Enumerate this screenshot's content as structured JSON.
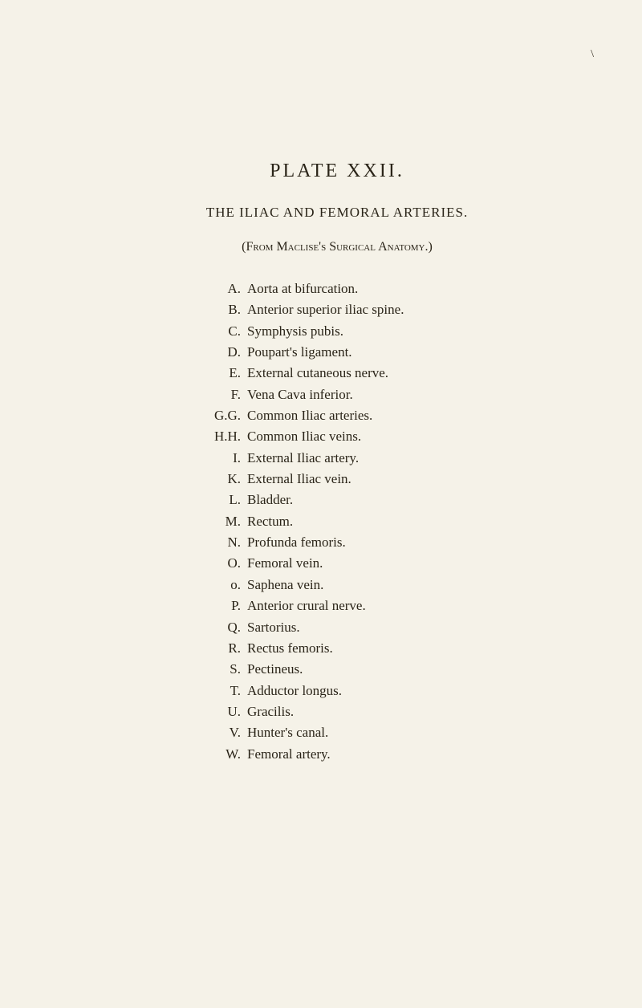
{
  "colors": {
    "background": "#f5f2e8",
    "text": "#2a2418"
  },
  "typography": {
    "body_font": "Georgia, Times New Roman, serif",
    "title_fontsize": 24,
    "subtitle_fontsize": 17,
    "entry_fontsize": 17
  },
  "corner_mark": "\\",
  "plate_title": "PLATE XXII.",
  "subtitle": "THE ILIAC AND FEMORAL ARTERIES.",
  "source_prefix": "(From ",
  "source_author": "Maclise's",
  "source_work": " Surgical Anatomy.)",
  "entries": [
    {
      "label": "A.",
      "text": "Aorta at bifurcation."
    },
    {
      "label": "B.",
      "text": "Anterior superior iliac spine."
    },
    {
      "label": "C.",
      "text": "Symphysis pubis."
    },
    {
      "label": "D.",
      "text": "Poupart's ligament."
    },
    {
      "label": "E.",
      "text": "External cutaneous nerve."
    },
    {
      "label": "F.",
      "text": "Vena Cava inferior."
    },
    {
      "label": "G.G.",
      "text": "Common Iliac arteries."
    },
    {
      "label": "H.H.",
      "text": "Common Iliac veins."
    },
    {
      "label": "I.",
      "text": "External Iliac artery."
    },
    {
      "label": "K.",
      "text": "External Iliac vein."
    },
    {
      "label": "L.",
      "text": "Bladder."
    },
    {
      "label": "M.",
      "text": "Rectum."
    },
    {
      "label": "N.",
      "text": "Profunda femoris."
    },
    {
      "label": "O.",
      "text": "Femoral vein."
    },
    {
      "label": "o.",
      "text": "Saphena vein."
    },
    {
      "label": "P.",
      "text": "Anterior crural nerve."
    },
    {
      "label": "Q.",
      "text": "Sartorius."
    },
    {
      "label": "R.",
      "text": "Rectus femoris."
    },
    {
      "label": "S.",
      "text": "Pectineus."
    },
    {
      "label": "T.",
      "text": "Adductor longus."
    },
    {
      "label": "U.",
      "text": "Gracilis."
    },
    {
      "label": "V.",
      "text": "Hunter's canal."
    },
    {
      "label": "W.",
      "text": "Femoral artery."
    }
  ]
}
